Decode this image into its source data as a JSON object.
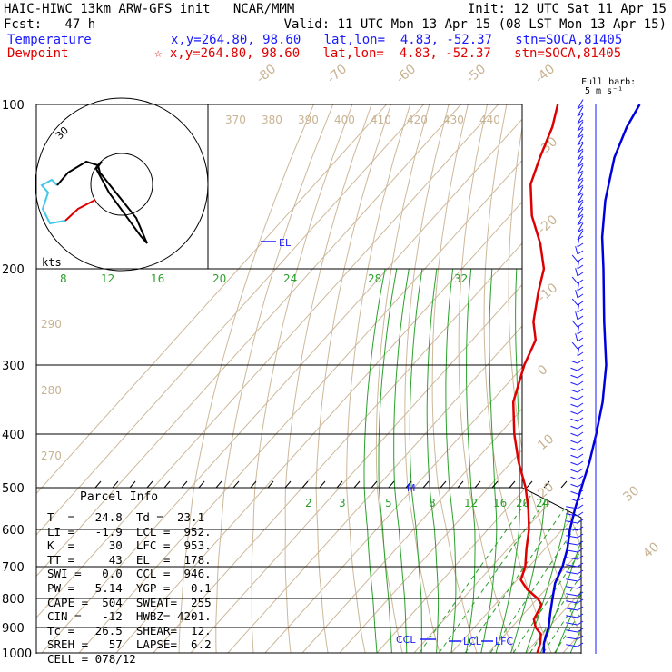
{
  "header": {
    "line1_left": "HAIC-HIWC 13km ARW-GFS init   NCAR/MMM",
    "line1_right": "Init: 12 UTC Sat 11 Apr 15",
    "line2_left": "Fcst:   47 h",
    "line2_right": "Valid: 11 UTC Mon 13 Apr 15 (08 LST Mon 13 Apr 15)",
    "temp_label": "Temperature",
    "temp_info": "x,y=264.80, 98.60   lat,lon=  4.83, -52.37   stn=SOCA,81405",
    "dew_label": "Dewpoint",
    "dew_info": "☆ x,y=264.80, 98.60   lat,lon=  4.83, -52.37   stn=SOCA,81405"
  },
  "barb_legend": {
    "line1": "Full barb:",
    "line2": "5 m s⁻¹"
  },
  "hodograph": {
    "speed_label": "30",
    "units_label": "kts"
  },
  "parcel_info": {
    "title": "Parcel Info",
    "rows": [
      "T  =   24.8  Td =  23.1",
      "LI =   -1.9  LCL =  952.",
      "K  =     30  LFC =  953.",
      "TT =     43  EL  =  178.",
      "SWI =   0.0  CCL =  946.",
      "PW =   5.14  YGP =   0.1",
      "CAPE =  504  SWEAT=  255",
      "CIN =   -12  HWBZ= 4201.",
      "Tc =   26.5  SHEAR=  12.",
      "SREH =   57  LAPSE=  6.2",
      "CELL = 078/12"
    ]
  },
  "chart_data": {
    "type": "line",
    "title": "Skew-T log-P sounding",
    "y_axis": {
      "scale": "log",
      "ylim": [
        1000,
        100
      ],
      "ticks": [
        100,
        200,
        300,
        400,
        500,
        600,
        700,
        800,
        900,
        1000
      ]
    },
    "isotherm_labels": [
      "-80",
      "-70",
      "-60",
      "-50",
      "-40",
      "-30",
      "-20",
      "-10",
      "0",
      "10",
      "20",
      "30",
      "40"
    ],
    "theta_labels_top": [
      "370",
      "380",
      "390",
      "400",
      "410",
      "420",
      "430",
      "440"
    ],
    "theta_labels_left": [
      "290",
      "280",
      "270"
    ],
    "mixing_ratio_labels_upper": [
      "8",
      "12",
      "16",
      "20",
      "24",
      "28",
      "32"
    ],
    "mixing_ratio_labels_lower": [
      "2",
      "3",
      "5",
      "8",
      "12",
      "16",
      "20",
      "24"
    ],
    "markers": {
      "el": "EL",
      "lcl": "LCL",
      "lfc": "LFC",
      "ccl": "CCL",
      "m": "M"
    },
    "series": [
      {
        "name": "Temperature",
        "color": "#0000dd",
        "points": [
          [
            1000,
            24.8
          ],
          [
            960,
            22.5
          ],
          [
            925,
            21.0
          ],
          [
            900,
            20.0
          ],
          [
            850,
            17.0
          ],
          [
            800,
            14.0
          ],
          [
            750,
            11.0
          ],
          [
            700,
            9.0
          ],
          [
            650,
            6.0
          ],
          [
            600,
            2.0
          ],
          [
            550,
            -1.5
          ],
          [
            500,
            -5.0
          ],
          [
            450,
            -9.0
          ],
          [
            400,
            -14.0
          ],
          [
            350,
            -20.0
          ],
          [
            300,
            -28.0
          ],
          [
            250,
            -39.0
          ],
          [
            200,
            -52.0
          ],
          [
            175,
            -60.0
          ],
          [
            150,
            -68.0
          ],
          [
            125,
            -76.0
          ],
          [
            110,
            -80.0
          ],
          [
            100,
            -82.0
          ]
        ]
      },
      {
        "name": "Dewpoint",
        "color": "#dd0000",
        "points": [
          [
            1000,
            23.1
          ],
          [
            960,
            21.5
          ],
          [
            925,
            19.5
          ],
          [
            900,
            16.5
          ],
          [
            870,
            14.0
          ],
          [
            850,
            13.5
          ],
          [
            820,
            12.5
          ],
          [
            800,
            10.0
          ],
          [
            770,
            5.0
          ],
          [
            740,
            1.0
          ],
          [
            700,
            -1.0
          ],
          [
            650,
            -5.0
          ],
          [
            600,
            -9.0
          ],
          [
            550,
            -14.0
          ],
          [
            500,
            -20.0
          ],
          [
            450,
            -28.0
          ],
          [
            400,
            -36.0
          ],
          [
            350,
            -44.0
          ],
          [
            300,
            -50.0
          ],
          [
            270,
            -53.0
          ],
          [
            250,
            -58.0
          ],
          [
            220,
            -64.0
          ],
          [
            200,
            -68.0
          ],
          [
            180,
            -75.0
          ],
          [
            160,
            -84.0
          ],
          [
            140,
            -92.0
          ],
          [
            125,
            -96.0
          ],
          [
            110,
            -100.0
          ],
          [
            100,
            -104.0
          ]
        ]
      }
    ]
  }
}
